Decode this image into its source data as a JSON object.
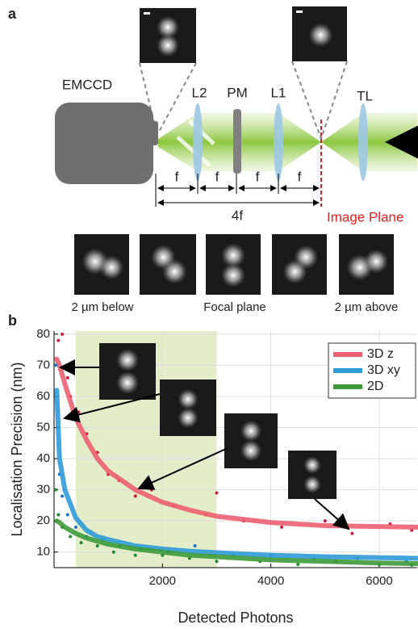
{
  "panel_a": {
    "label": "a",
    "camera": "EMCCD",
    "lenses": [
      "L2",
      "PM",
      "L1",
      "TL"
    ],
    "focal": "f",
    "span": "4f",
    "image_plane": "Image Plane",
    "captions": [
      "2 µm below",
      "Focal plane",
      "2 µm above"
    ]
  },
  "chart_data": {
    "type": "line",
    "panel_label": "b",
    "x_label": "Detected Photons",
    "y_label": "Localisation Precision (nm)",
    "xlim": [
      0,
      6700
    ],
    "xticks": [
      2000,
      4000,
      6000
    ],
    "ylim": [
      5,
      81
    ],
    "yticks": [
      10,
      20,
      30,
      40,
      50,
      60,
      70,
      80
    ],
    "grid": true,
    "legend": "upper right",
    "highlight_region": [
      400,
      3000
    ],
    "highlight_color": "#e4edc9",
    "series": [
      {
        "name": "3D z",
        "color": "#ec5f71",
        "points_color": "#cc1d3e",
        "x": [
          50,
          100,
          200,
          400,
          600,
          800,
          1000,
          1500,
          2000,
          2500,
          3000,
          4000,
          5000,
          6000,
          6700
        ],
        "values": [
          72,
          70,
          64,
          53,
          46,
          40,
          36,
          30,
          26,
          23.5,
          21.5,
          19.5,
          18.5,
          18.2,
          18
        ],
        "points_x": [
          80,
          150,
          250,
          300,
          450,
          600,
          800,
          1000,
          1200,
          1500,
          1800,
          2200,
          2800,
          3000,
          3500,
          4200,
          5000,
          5500,
          6200,
          6600
        ],
        "points_y": [
          78,
          80,
          66,
          60,
          55,
          48,
          42,
          35,
          33,
          28,
          30,
          25,
          22,
          29,
          20,
          18,
          20,
          16,
          19,
          17
        ]
      },
      {
        "name": "3D xy",
        "color": "#2f9bd8",
        "points_color": "#1f74c2",
        "x": [
          50,
          100,
          200,
          400,
          600,
          800,
          1000,
          1500,
          2000,
          2500,
          3000,
          4000,
          5000,
          6000,
          6700
        ],
        "values": [
          62,
          40,
          30,
          21,
          17,
          15,
          14,
          12,
          11,
          10.3,
          9.8,
          9,
          8.5,
          8.2,
          8
        ],
        "points_x": [
          30,
          60,
          100,
          150,
          250,
          400,
          600,
          900,
          1200,
          1600,
          2100,
          2600,
          3300,
          4000,
          4800,
          5600,
          6500
        ],
        "points_y": [
          70,
          50,
          35,
          28,
          22,
          18,
          15,
          14,
          12,
          11,
          10,
          12,
          9,
          9,
          8,
          8,
          7
        ]
      },
      {
        "name": "2D",
        "color": "#3c9a3a",
        "points_color": "#1e8a2c",
        "x": [
          50,
          100,
          200,
          400,
          600,
          800,
          1000,
          1500,
          2000,
          2500,
          3000,
          4000,
          5000,
          6000,
          6700
        ],
        "values": [
          20,
          19.5,
          18,
          16,
          14.5,
          13.5,
          12.5,
          11,
          10,
          9,
          8.5,
          7.5,
          7,
          6.5,
          6.3
        ],
        "points_x": [
          30,
          80,
          150,
          300,
          500,
          800,
          1100,
          1500,
          2000,
          2500,
          3000,
          3800,
          4500,
          5200,
          6000,
          6600
        ],
        "points_y": [
          30,
          22,
          18,
          15,
          13,
          12,
          10,
          9,
          9,
          8,
          7,
          7,
          6,
          7,
          6,
          5.8
        ]
      }
    ]
  }
}
